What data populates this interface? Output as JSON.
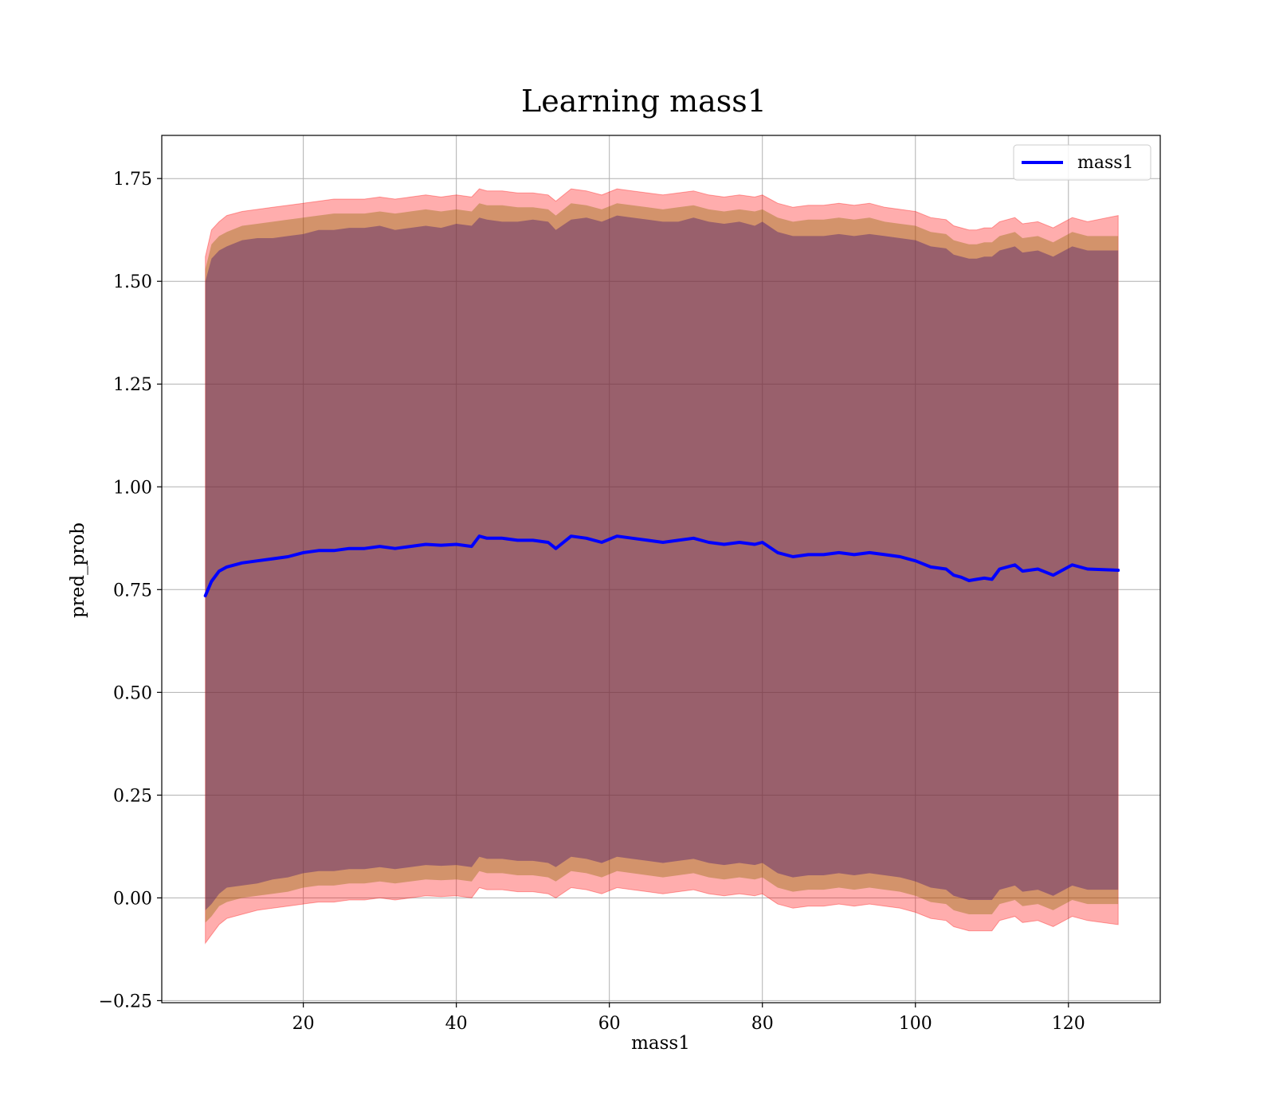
{
  "chart_data": {
    "type": "line",
    "title": "Learning mass1",
    "xlabel": "mass1",
    "ylabel": "pred_prob",
    "xlim": [
      1.5,
      132
    ],
    "ylim": [
      -0.255,
      1.855
    ],
    "x_ticks": [
      20,
      40,
      60,
      80,
      100,
      120
    ],
    "x_tick_labels": [
      "20",
      "40",
      "60",
      "80",
      "100",
      "120"
    ],
    "y_ticks": [
      -0.25,
      0.0,
      0.25,
      0.5,
      0.75,
      1.0,
      1.25,
      1.5,
      1.75
    ],
    "y_tick_labels": [
      "−0.25",
      "0.00",
      "0.25",
      "0.50",
      "0.75",
      "1.00",
      "1.25",
      "1.50",
      "1.75"
    ],
    "grid": true,
    "legend_position": "top-right",
    "colors": {
      "line": "#0000ff",
      "band_outer": "#ff0000",
      "band_middle": "#8b6a00",
      "band_inner": "#4b1a6e"
    },
    "series": [
      {
        "name": "mass1",
        "x": [
          7.2,
          8,
          9,
          10,
          12,
          14,
          16,
          18,
          20,
          22,
          24,
          26,
          28,
          30,
          32,
          34,
          36,
          38,
          40,
          42,
          43,
          44,
          46,
          48,
          50,
          52,
          53,
          55,
          57,
          59,
          61,
          63,
          65,
          67,
          69,
          71,
          73,
          75,
          77,
          79,
          80,
          82,
          84,
          86,
          88,
          90,
          92,
          94,
          96,
          98,
          100,
          102,
          104,
          105,
          106,
          107,
          108,
          109,
          110,
          111,
          113,
          114,
          116,
          118,
          120.5,
          122.5,
          126.5
        ],
        "y": [
          0.735,
          0.77,
          0.795,
          0.805,
          0.815,
          0.82,
          0.825,
          0.83,
          0.84,
          0.845,
          0.845,
          0.85,
          0.85,
          0.855,
          0.85,
          0.855,
          0.86,
          0.858,
          0.86,
          0.855,
          0.88,
          0.875,
          0.875,
          0.87,
          0.87,
          0.865,
          0.85,
          0.88,
          0.875,
          0.865,
          0.88,
          0.875,
          0.87,
          0.865,
          0.87,
          0.875,
          0.865,
          0.86,
          0.865,
          0.86,
          0.865,
          0.84,
          0.83,
          0.835,
          0.835,
          0.84,
          0.835,
          0.84,
          0.835,
          0.83,
          0.82,
          0.805,
          0.8,
          0.785,
          0.78,
          0.772,
          0.775,
          0.778,
          0.775,
          0.8,
          0.81,
          0.795,
          0.8,
          0.785,
          0.81,
          0.8,
          0.797
        ],
        "band_inner_upper": [
          1.5,
          1.555,
          1.575,
          1.585,
          1.6,
          1.605,
          1.605,
          1.61,
          1.615,
          1.625,
          1.625,
          1.63,
          1.63,
          1.635,
          1.625,
          1.63,
          1.635,
          1.63,
          1.64,
          1.635,
          1.655,
          1.65,
          1.645,
          1.645,
          1.65,
          1.645,
          1.625,
          1.65,
          1.655,
          1.645,
          1.66,
          1.655,
          1.65,
          1.645,
          1.645,
          1.655,
          1.645,
          1.64,
          1.645,
          1.635,
          1.645,
          1.62,
          1.61,
          1.61,
          1.61,
          1.615,
          1.61,
          1.615,
          1.61,
          1.605,
          1.6,
          1.585,
          1.58,
          1.565,
          1.56,
          1.555,
          1.555,
          1.56,
          1.56,
          1.575,
          1.585,
          1.57,
          1.575,
          1.56,
          1.585,
          1.575,
          1.575
        ],
        "band_inner_lower": [
          -0.03,
          -0.015,
          0.01,
          0.025,
          0.03,
          0.035,
          0.045,
          0.05,
          0.06,
          0.065,
          0.065,
          0.07,
          0.07,
          0.075,
          0.07,
          0.075,
          0.08,
          0.078,
          0.08,
          0.075,
          0.1,
          0.095,
          0.095,
          0.09,
          0.09,
          0.085,
          0.075,
          0.1,
          0.095,
          0.085,
          0.1,
          0.095,
          0.09,
          0.085,
          0.09,
          0.095,
          0.085,
          0.08,
          0.085,
          0.08,
          0.085,
          0.06,
          0.05,
          0.055,
          0.055,
          0.06,
          0.055,
          0.06,
          0.055,
          0.05,
          0.04,
          0.025,
          0.02,
          0.005,
          0.0,
          -0.005,
          -0.005,
          -0.005,
          -0.005,
          0.02,
          0.03,
          0.015,
          0.02,
          0.005,
          0.03,
          0.02,
          0.02
        ],
        "band_middle_upper": [
          1.53,
          1.59,
          1.61,
          1.62,
          1.635,
          1.64,
          1.645,
          1.65,
          1.655,
          1.66,
          1.665,
          1.665,
          1.665,
          1.67,
          1.665,
          1.67,
          1.675,
          1.67,
          1.675,
          1.67,
          1.69,
          1.685,
          1.685,
          1.68,
          1.68,
          1.675,
          1.66,
          1.69,
          1.685,
          1.675,
          1.69,
          1.685,
          1.68,
          1.675,
          1.68,
          1.685,
          1.675,
          1.67,
          1.675,
          1.67,
          1.675,
          1.655,
          1.645,
          1.65,
          1.65,
          1.655,
          1.65,
          1.655,
          1.645,
          1.64,
          1.635,
          1.62,
          1.615,
          1.6,
          1.595,
          1.59,
          1.59,
          1.595,
          1.595,
          1.61,
          1.62,
          1.605,
          1.61,
          1.595,
          1.62,
          1.61,
          1.61
        ],
        "band_middle_lower": [
          -0.06,
          -0.045,
          -0.02,
          -0.01,
          0.0,
          0.005,
          0.01,
          0.015,
          0.025,
          0.03,
          0.03,
          0.035,
          0.035,
          0.04,
          0.035,
          0.04,
          0.045,
          0.043,
          0.045,
          0.04,
          0.065,
          0.06,
          0.06,
          0.055,
          0.055,
          0.05,
          0.04,
          0.065,
          0.06,
          0.05,
          0.065,
          0.06,
          0.055,
          0.05,
          0.055,
          0.06,
          0.05,
          0.045,
          0.05,
          0.045,
          0.05,
          0.025,
          0.015,
          0.02,
          0.02,
          0.025,
          0.02,
          0.025,
          0.02,
          0.015,
          0.005,
          -0.01,
          -0.015,
          -0.03,
          -0.035,
          -0.04,
          -0.04,
          -0.04,
          -0.04,
          -0.015,
          -0.005,
          -0.02,
          -0.015,
          -0.03,
          -0.005,
          -0.015,
          -0.015
        ],
        "band_outer_upper": [
          1.56,
          1.625,
          1.645,
          1.66,
          1.67,
          1.675,
          1.68,
          1.685,
          1.69,
          1.695,
          1.7,
          1.7,
          1.7,
          1.705,
          1.7,
          1.705,
          1.71,
          1.705,
          1.71,
          1.705,
          1.725,
          1.72,
          1.72,
          1.715,
          1.715,
          1.71,
          1.695,
          1.725,
          1.72,
          1.71,
          1.725,
          1.72,
          1.715,
          1.71,
          1.715,
          1.72,
          1.71,
          1.705,
          1.71,
          1.705,
          1.71,
          1.69,
          1.68,
          1.685,
          1.685,
          1.69,
          1.685,
          1.69,
          1.68,
          1.675,
          1.67,
          1.655,
          1.65,
          1.635,
          1.63,
          1.625,
          1.625,
          1.63,
          1.63,
          1.645,
          1.655,
          1.64,
          1.645,
          1.63,
          1.655,
          1.645,
          1.66
        ],
        "band_outer_lower": [
          -0.11,
          -0.09,
          -0.065,
          -0.05,
          -0.04,
          -0.03,
          -0.025,
          -0.02,
          -0.015,
          -0.01,
          -0.01,
          -0.005,
          -0.005,
          0.0,
          -0.005,
          0.0,
          0.005,
          0.003,
          0.005,
          0.0,
          0.025,
          0.02,
          0.02,
          0.015,
          0.015,
          0.01,
          0.0,
          0.025,
          0.02,
          0.01,
          0.025,
          0.02,
          0.015,
          0.01,
          0.015,
          0.02,
          0.01,
          0.005,
          0.01,
          0.005,
          0.01,
          -0.015,
          -0.025,
          -0.02,
          -0.02,
          -0.015,
          -0.02,
          -0.015,
          -0.02,
          -0.025,
          -0.035,
          -0.05,
          -0.055,
          -0.07,
          -0.075,
          -0.08,
          -0.08,
          -0.08,
          -0.08,
          -0.055,
          -0.045,
          -0.06,
          -0.055,
          -0.07,
          -0.045,
          -0.055,
          -0.065
        ]
      }
    ]
  }
}
